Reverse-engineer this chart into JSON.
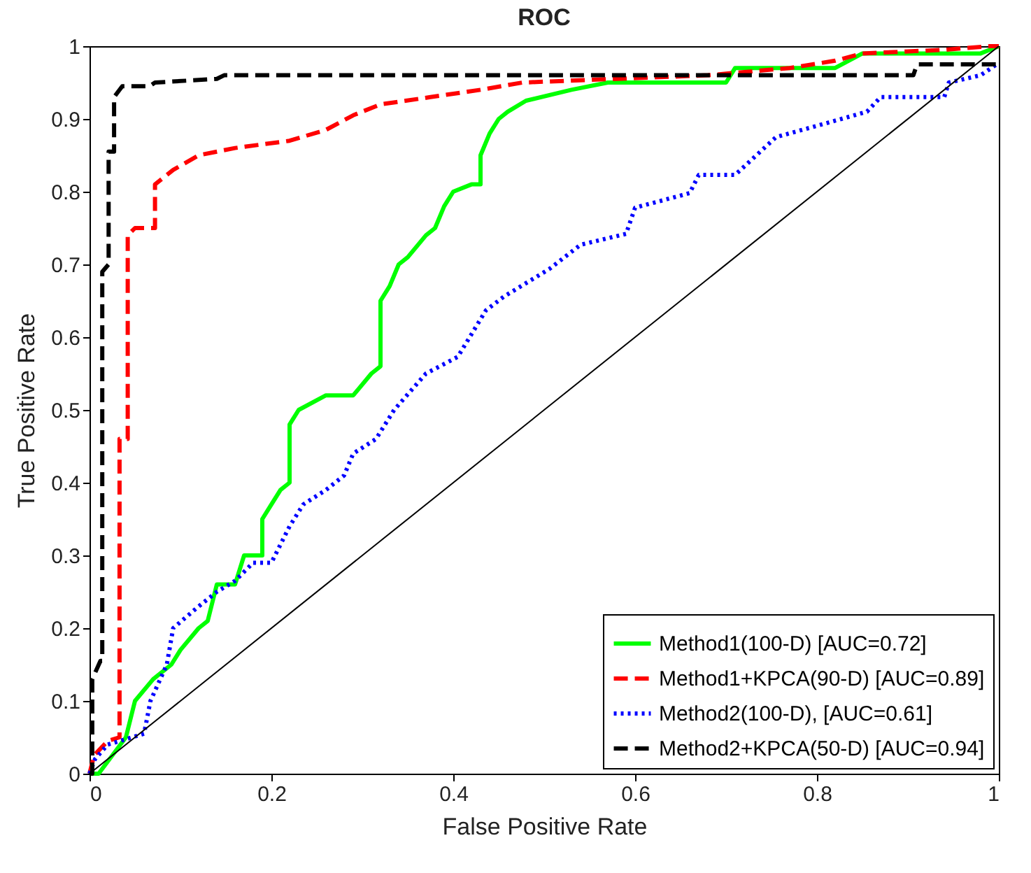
{
  "chart_data": {
    "type": "line",
    "title": "ROC",
    "xlabel": "False Positive Rate",
    "ylabel": "True Positive Rate",
    "xlim": [
      0,
      1
    ],
    "ylim": [
      0,
      1
    ],
    "xticks": [
      0,
      0.2,
      0.4,
      0.6,
      0.8,
      1
    ],
    "yticks": [
      0,
      0.1,
      0.2,
      0.3,
      0.4,
      0.5,
      0.6,
      0.7,
      0.8,
      0.9,
      1
    ],
    "grid": false,
    "legend": "bottom right",
    "marker": "none",
    "series": [
      {
        "name": "Method1(100-D) [AUC=0.72]",
        "color": "#00ff00",
        "line_style": "solid",
        "x": [
          0,
          0.01,
          0.04,
          0.05,
          0.07,
          0.09,
          0.1,
          0.12,
          0.13,
          0.14,
          0.16,
          0.17,
          0.19,
          0.19,
          0.2,
          0.21,
          0.22,
          0.22,
          0.23,
          0.26,
          0.29,
          0.31,
          0.32,
          0.32,
          0.33,
          0.34,
          0.35,
          0.37,
          0.38,
          0.39,
          0.4,
          0.42,
          0.43,
          0.43,
          0.44,
          0.45,
          0.46,
          0.48,
          0.53,
          0.57,
          0.7,
          0.71,
          0.82,
          0.85,
          0.98,
          1
        ],
        "values": [
          0,
          0,
          0.05,
          0.1,
          0.13,
          0.15,
          0.17,
          0.2,
          0.21,
          0.26,
          0.26,
          0.3,
          0.3,
          0.35,
          0.37,
          0.39,
          0.4,
          0.48,
          0.5,
          0.52,
          0.52,
          0.55,
          0.56,
          0.65,
          0.67,
          0.7,
          0.71,
          0.74,
          0.75,
          0.78,
          0.8,
          0.81,
          0.81,
          0.85,
          0.88,
          0.9,
          0.91,
          0.925,
          0.94,
          0.95,
          0.95,
          0.97,
          0.97,
          0.99,
          0.99,
          1
        ]
      },
      {
        "name": "Method1+KPCA(90-D) [AUC=0.89]",
        "color": "#ff0000",
        "line_style": "dashed",
        "x": [
          0,
          0.005,
          0.02,
          0.033,
          0.033,
          0.042,
          0.042,
          0.05,
          0.072,
          0.072,
          0.092,
          0.12,
          0.16,
          0.22,
          0.26,
          0.29,
          0.32,
          0.375,
          0.43,
          0.476,
          0.68,
          0.77,
          0.82,
          0.85,
          0.94,
          0.99,
          1
        ],
        "values": [
          0,
          0.025,
          0.045,
          0.05,
          0.46,
          0.46,
          0.74,
          0.75,
          0.75,
          0.81,
          0.83,
          0.85,
          0.86,
          0.87,
          0.885,
          0.905,
          0.92,
          0.93,
          0.94,
          0.95,
          0.96,
          0.97,
          0.98,
          0.99,
          0.995,
          1,
          1
        ]
      },
      {
        "name": "Method2(100-D), [AUC=0.61]",
        "color": "#0000ff",
        "line_style": "dotted",
        "x": [
          0,
          0.006,
          0.02,
          0.047,
          0.06,
          0.067,
          0.085,
          0.092,
          0.12,
          0.14,
          0.16,
          0.18,
          0.2,
          0.22,
          0.235,
          0.26,
          0.28,
          0.29,
          0.315,
          0.335,
          0.37,
          0.405,
          0.436,
          0.456,
          0.506,
          0.54,
          0.59,
          0.6,
          0.66,
          0.67,
          0.71,
          0.755,
          0.81,
          0.855,
          0.87,
          0.94,
          0.945,
          0.98,
          1
        ],
        "values": [
          0,
          0.02,
          0.04,
          0.05,
          0.055,
          0.1,
          0.15,
          0.2,
          0.23,
          0.25,
          0.265,
          0.29,
          0.29,
          0.34,
          0.37,
          0.39,
          0.41,
          0.44,
          0.46,
          0.5,
          0.55,
          0.573,
          0.637,
          0.656,
          0.694,
          0.727,
          0.742,
          0.778,
          0.798,
          0.823,
          0.823,
          0.875,
          0.894,
          0.91,
          0.93,
          0.93,
          0.95,
          0.96,
          0.977
        ]
      },
      {
        "name": "Method2+KPCA(50-D) [AUC=0.94]",
        "color": "#000000",
        "line_style": "dashed",
        "x": [
          0,
          0.003,
          0.003,
          0.012,
          0.014,
          0.014,
          0.021,
          0.021,
          0.027,
          0.027,
          0.036,
          0.066,
          0.072,
          0.14,
          0.148,
          0.906,
          0.91,
          1
        ],
        "values": [
          0,
          0,
          0.13,
          0.155,
          0.155,
          0.69,
          0.7,
          0.855,
          0.855,
          0.93,
          0.945,
          0.945,
          0.95,
          0.955,
          0.96,
          0.96,
          0.975,
          0.975
        ]
      },
      {
        "color": "#000000",
        "line_style": "solid",
        "x": [
          0,
          1
        ],
        "values": [
          0,
          1
        ]
      }
    ]
  }
}
